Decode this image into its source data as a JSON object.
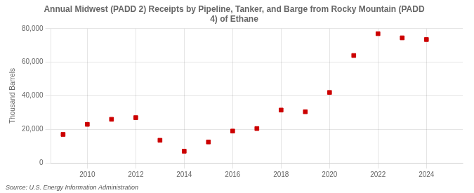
{
  "chart_data": {
    "type": "scatter",
    "title": "Annual Midwest (PADD 2) Receipts by Pipeline, Tanker, and Barge from Rocky Mountain (PADD\n4) of Ethane",
    "ylabel": "Thousand Barrels",
    "source": "Source: U.S. Energy Information Administration",
    "x": [
      2009,
      2010,
      2011,
      2012,
      2013,
      2014,
      2015,
      2016,
      2017,
      2018,
      2019,
      2020,
      2021,
      2022,
      2023,
      2024
    ],
    "values": [
      17000,
      23000,
      26000,
      27000,
      13500,
      7000,
      12500,
      19000,
      20500,
      31500,
      30500,
      42000,
      64000,
      77000,
      74500,
      73500
    ],
    "color": "#cc0000",
    "marker": "square",
    "xlim": [
      2008.5,
      2025.5
    ],
    "xticks": [
      2010,
      2012,
      2014,
      2016,
      2018,
      2020,
      2022,
      2024
    ],
    "ylim": [
      0,
      80000
    ],
    "yticks": [
      0,
      {
        "value": 20000,
        "label": "20,000"
      },
      {
        "value": 40000,
        "label": "40,000"
      },
      {
        "value": 60000,
        "label": "60,000"
      },
      {
        "value": 80000,
        "label": "80,000"
      }
    ],
    "grid": true
  }
}
